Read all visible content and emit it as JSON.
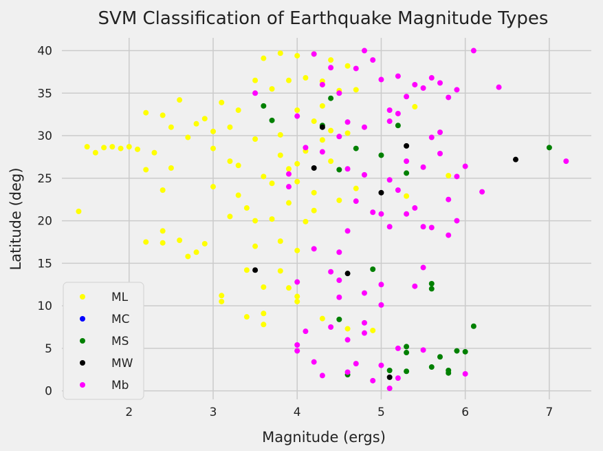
{
  "chart_data": {
    "type": "scatter",
    "title": "SVM Classification of Earthquake Magnitude Types",
    "xlabel": "Magnitude (ergs)",
    "ylabel": "Latitude (deg)",
    "xlim": [
      1.2,
      7.5
    ],
    "ylim": [
      -1.0,
      41.5
    ],
    "xticks": [
      2,
      3,
      4,
      5,
      6,
      7
    ],
    "yticks": [
      0,
      5,
      10,
      15,
      20,
      25,
      30,
      35,
      40
    ],
    "grid": true,
    "legend_position": "lower-left",
    "series": [
      {
        "name": "ML",
        "color": "#ffff00",
        "points": [
          [
            1.4,
            21.1
          ],
          [
            1.5,
            28.7
          ],
          [
            1.6,
            28.0
          ],
          [
            1.7,
            28.6
          ],
          [
            1.8,
            28.7
          ],
          [
            1.9,
            28.5
          ],
          [
            2.0,
            28.7
          ],
          [
            2.1,
            28.4
          ],
          [
            2.2,
            32.7
          ],
          [
            2.2,
            17.5
          ],
          [
            2.2,
            26.0
          ],
          [
            2.3,
            28.0
          ],
          [
            2.4,
            32.4
          ],
          [
            2.4,
            18.8
          ],
          [
            2.4,
            17.4
          ],
          [
            2.4,
            23.6
          ],
          [
            2.5,
            31.0
          ],
          [
            2.5,
            26.2
          ],
          [
            2.6,
            34.2
          ],
          [
            2.6,
            17.7
          ],
          [
            2.7,
            29.8
          ],
          [
            2.7,
            15.8
          ],
          [
            2.8,
            31.4
          ],
          [
            2.8,
            16.3
          ],
          [
            2.9,
            32.0
          ],
          [
            2.9,
            17.3
          ],
          [
            3.0,
            30.5
          ],
          [
            3.0,
            24.0
          ],
          [
            3.1,
            11.2
          ],
          [
            3.1,
            10.5
          ],
          [
            3.2,
            27.0
          ],
          [
            3.2,
            20.5
          ],
          [
            3.3,
            33.0
          ],
          [
            3.3,
            23.0
          ],
          [
            3.4,
            14.2
          ],
          [
            3.4,
            8.7
          ],
          [
            3.5,
            36.5
          ],
          [
            3.5,
            20.0
          ],
          [
            3.5,
            17.0
          ],
          [
            3.6,
            39.1
          ],
          [
            3.6,
            12.2
          ],
          [
            3.6,
            9.1
          ],
          [
            3.6,
            7.8
          ],
          [
            3.7,
            35.5
          ],
          [
            3.7,
            24.4
          ],
          [
            3.8,
            39.7
          ],
          [
            3.8,
            30.1
          ],
          [
            3.8,
            17.6
          ],
          [
            3.8,
            14.1
          ],
          [
            3.9,
            36.5
          ],
          [
            3.9,
            26.1
          ],
          [
            3.9,
            12.1
          ],
          [
            4.0,
            39.4
          ],
          [
            4.0,
            33.0
          ],
          [
            4.0,
            26.7
          ],
          [
            4.0,
            16.5
          ],
          [
            4.0,
            11.1
          ],
          [
            4.0,
            10.5
          ],
          [
            4.1,
            36.8
          ],
          [
            4.1,
            28.2
          ],
          [
            4.2,
            39.6
          ],
          [
            4.2,
            31.7
          ],
          [
            4.2,
            21.2
          ],
          [
            4.3,
            36.4
          ],
          [
            4.3,
            29.5
          ],
          [
            4.4,
            38.9
          ],
          [
            4.4,
            27.0
          ],
          [
            4.5,
            35.3
          ],
          [
            4.5,
            22.4
          ],
          [
            4.6,
            38.2
          ],
          [
            4.6,
            30.3
          ],
          [
            4.7,
            35.4
          ],
          [
            4.7,
            23.8
          ],
          [
            3.0,
            28.5
          ],
          [
            3.1,
            33.9
          ],
          [
            3.2,
            31.0
          ],
          [
            3.3,
            26.5
          ],
          [
            3.4,
            21.5
          ],
          [
            3.5,
            29.6
          ],
          [
            3.6,
            25.2
          ],
          [
            3.7,
            20.2
          ],
          [
            3.8,
            27.7
          ],
          [
            3.9,
            22.1
          ],
          [
            4.0,
            24.6
          ],
          [
            4.1,
            19.9
          ],
          [
            4.2,
            23.3
          ],
          [
            4.3,
            33.5
          ],
          [
            4.4,
            30.6
          ],
          [
            5.4,
            33.4
          ],
          [
            5.8,
            25.3
          ],
          [
            5.3,
            22.9
          ],
          [
            4.3,
            8.5
          ],
          [
            4.6,
            7.3
          ],
          [
            4.9,
            7.1
          ]
        ]
      },
      {
        "name": "MC",
        "color": "#0000ff",
        "points": []
      },
      {
        "name": "MS",
        "color": "#008000",
        "points": [
          [
            3.6,
            33.5
          ],
          [
            3.7,
            31.8
          ],
          [
            4.3,
            31.2
          ],
          [
            4.4,
            34.4
          ],
          [
            4.5,
            26.0
          ],
          [
            4.7,
            28.5
          ],
          [
            5.0,
            27.7
          ],
          [
            5.2,
            31.2
          ],
          [
            5.3,
            25.6
          ],
          [
            7.0,
            28.6
          ],
          [
            4.9,
            14.3
          ],
          [
            5.6,
            12.6
          ],
          [
            5.6,
            12.0
          ],
          [
            4.5,
            8.4
          ],
          [
            6.1,
            7.6
          ],
          [
            5.3,
            5.2
          ],
          [
            5.3,
            4.5
          ],
          [
            5.7,
            4.0
          ],
          [
            5.9,
            4.7
          ],
          [
            6.0,
            4.6
          ],
          [
            5.1,
            2.4
          ],
          [
            5.3,
            2.3
          ],
          [
            5.6,
            2.8
          ],
          [
            5.8,
            2.4
          ],
          [
            4.6,
            1.9
          ],
          [
            5.8,
            2.1
          ]
        ]
      },
      {
        "name": "MW",
        "color": "#000000",
        "points": [
          [
            4.3,
            31.0
          ],
          [
            4.2,
            26.2
          ],
          [
            5.0,
            23.3
          ],
          [
            5.3,
            28.8
          ],
          [
            6.6,
            27.2
          ],
          [
            3.5,
            14.2
          ],
          [
            4.6,
            13.8
          ],
          [
            5.1,
            1.6
          ]
        ]
      },
      {
        "name": "Mb",
        "color": "#ff00ff",
        "points": [
          [
            6.1,
            40.0
          ],
          [
            6.4,
            35.7
          ],
          [
            7.2,
            27.0
          ],
          [
            6.2,
            23.4
          ],
          [
            5.8,
            22.5
          ],
          [
            5.9,
            25.2
          ],
          [
            5.9,
            20.0
          ],
          [
            5.8,
            18.3
          ],
          [
            5.5,
            19.3
          ],
          [
            5.6,
            19.2
          ],
          [
            5.5,
            14.5
          ],
          [
            5.4,
            12.3
          ],
          [
            5.0,
            12.5
          ],
          [
            5.0,
            10.1
          ],
          [
            4.8,
            11.5
          ],
          [
            4.5,
            13.0
          ],
          [
            4.5,
            11.0
          ],
          [
            4.2,
            16.7
          ],
          [
            4.0,
            12.8
          ],
          [
            4.0,
            5.4
          ],
          [
            4.0,
            4.7
          ],
          [
            4.2,
            3.4
          ],
          [
            4.6,
            2.2
          ],
          [
            5.0,
            3.0
          ],
          [
            5.2,
            5.0
          ],
          [
            5.5,
            4.8
          ],
          [
            6.0,
            2.0
          ],
          [
            5.1,
            0.3
          ],
          [
            4.5,
            16.3
          ],
          [
            4.4,
            14.0
          ],
          [
            4.8,
            8.0
          ],
          [
            4.6,
            6.0
          ],
          [
            4.4,
            7.5
          ],
          [
            4.1,
            7.0
          ],
          [
            4.3,
            1.8
          ],
          [
            4.9,
            1.2
          ],
          [
            5.2,
            1.5
          ],
          [
            4.7,
            3.2
          ],
          [
            4.8,
            6.8
          ],
          [
            3.9,
            24.0
          ],
          [
            4.0,
            32.3
          ],
          [
            4.1,
            28.6
          ],
          [
            4.2,
            39.6
          ],
          [
            4.3,
            36.0
          ],
          [
            4.4,
            38.0
          ],
          [
            4.5,
            35.0
          ],
          [
            4.6,
            31.6
          ],
          [
            4.7,
            37.9
          ],
          [
            4.8,
            40.0
          ],
          [
            4.9,
            38.9
          ],
          [
            5.0,
            36.6
          ],
          [
            5.1,
            33.0
          ],
          [
            5.2,
            37.0
          ],
          [
            5.3,
            34.6
          ],
          [
            5.4,
            36.0
          ],
          [
            5.5,
            35.6
          ],
          [
            5.6,
            36.8
          ],
          [
            5.7,
            36.2
          ],
          [
            5.8,
            34.5
          ],
          [
            5.9,
            35.4
          ],
          [
            4.6,
            26.1
          ],
          [
            4.7,
            22.3
          ],
          [
            4.8,
            25.4
          ],
          [
            4.9,
            21.0
          ],
          [
            5.0,
            20.8
          ],
          [
            5.1,
            24.8
          ],
          [
            5.2,
            23.6
          ],
          [
            5.3,
            27.0
          ],
          [
            5.4,
            21.5
          ],
          [
            5.5,
            26.3
          ],
          [
            5.6,
            29.8
          ],
          [
            5.7,
            30.4
          ],
          [
            4.3,
            28.1
          ],
          [
            4.5,
            29.9
          ],
          [
            4.6,
            18.8
          ],
          [
            4.8,
            31.0
          ],
          [
            5.1,
            19.3
          ],
          [
            5.3,
            20.8
          ],
          [
            3.5,
            35.0
          ],
          [
            3.9,
            25.5
          ],
          [
            5.7,
            27.9
          ],
          [
            6.0,
            26.4
          ],
          [
            5.1,
            31.7
          ],
          [
            5.2,
            32.6
          ]
        ]
      }
    ]
  }
}
